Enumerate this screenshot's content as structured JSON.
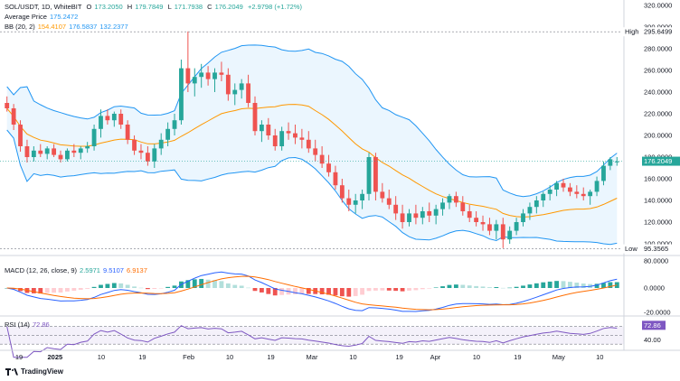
{
  "header": {
    "symbol_line": "SOL/USDT, 1D, WhiteBIT",
    "open_label": "O",
    "open": "173.2050",
    "high_label": "H",
    "high": "179.7849",
    "low_label": "L",
    "low": "171.7938",
    "close_label": "C",
    "close": "176.2049",
    "change": "+2.9798 (+1.72%)",
    "avg_label": "Average Price",
    "avg_value": "175.2472",
    "bb_label": "BB (20, 2)",
    "bb_mid": "154.4107",
    "bb_upper": "176.5837",
    "bb_lower": "132.2377"
  },
  "price_axis": {
    "ticks": [
      "320.0000",
      "300.0000",
      "280.0000",
      "260.0000",
      "240.0000",
      "220.0000",
      "200.0000",
      "180.0000",
      "160.0000",
      "140.0000",
      "120.0000",
      "100.0000"
    ],
    "high_tag_label": "High",
    "high_tag_value": "295.6499",
    "low_tag_label": "Low",
    "low_tag_value": "95.3565",
    "last_price_tag": "176.2049"
  },
  "macd": {
    "label": "MACD (12, 26, close, 9)",
    "hist": "2.5971",
    "macd": "9.5107",
    "signal": "6.9137",
    "ticks": [
      "80.0000",
      "0.0000",
      "-20.0000"
    ]
  },
  "rsi": {
    "label": "RSI (14)",
    "value": "72.86",
    "ticks": [
      "40.00"
    ]
  },
  "time_axis": [
    "19",
    "2025",
    "10",
    "19",
    "Feb",
    "10",
    "19",
    "Mar",
    "10",
    "19",
    "Apr",
    "10",
    "19",
    "May",
    "10"
  ],
  "branding": "TradingView",
  "colors": {
    "up": "#26a69a",
    "down": "#ef5350",
    "bb_line": "#2196f3",
    "bb_fill": "#e3f2fd",
    "bb_mid": "#ff9800",
    "macd_line": "#2962ff",
    "signal_line": "#ff6d00",
    "rsi_line": "#7e57c2"
  },
  "chart_data": {
    "type": "candlestick",
    "series_ohlc": [
      [
        230,
        236,
        222,
        225
      ],
      [
        225,
        229,
        205,
        210
      ],
      [
        210,
        214,
        185,
        190
      ],
      [
        190,
        196,
        175,
        180
      ],
      [
        180,
        190,
        176,
        186
      ],
      [
        186,
        192,
        180,
        183
      ],
      [
        183,
        190,
        178,
        188
      ],
      [
        188,
        192,
        180,
        182
      ],
      [
        182,
        186,
        175,
        178
      ],
      [
        178,
        188,
        176,
        186
      ],
      [
        186,
        192,
        180,
        184
      ],
      [
        184,
        190,
        178,
        188
      ],
      [
        188,
        194,
        184,
        190
      ],
      [
        190,
        210,
        186,
        206
      ],
      [
        206,
        224,
        198,
        218
      ],
      [
        218,
        224,
        210,
        214
      ],
      [
        214,
        222,
        208,
        220
      ],
      [
        220,
        224,
        206,
        210
      ],
      [
        210,
        214,
        192,
        196
      ],
      [
        196,
        200,
        182,
        186
      ],
      [
        186,
        192,
        178,
        184
      ],
      [
        184,
        190,
        172,
        176
      ],
      [
        176,
        192,
        170,
        188
      ],
      [
        188,
        202,
        182,
        196
      ],
      [
        196,
        212,
        190,
        206
      ],
      [
        206,
        220,
        200,
        214
      ],
      [
        214,
        270,
        210,
        262
      ],
      [
        262,
        296,
        240,
        248
      ],
      [
        248,
        262,
        236,
        254
      ],
      [
        254,
        266,
        244,
        258
      ],
      [
        258,
        264,
        246,
        252
      ],
      [
        252,
        262,
        240,
        258
      ],
      [
        258,
        268,
        250,
        256
      ],
      [
        256,
        262,
        232,
        238
      ],
      [
        238,
        248,
        228,
        242
      ],
      [
        242,
        252,
        234,
        248
      ],
      [
        248,
        256,
        226,
        230
      ],
      [
        230,
        236,
        200,
        204
      ],
      [
        204,
        214,
        194,
        210
      ],
      [
        210,
        216,
        196,
        200
      ],
      [
        200,
        206,
        186,
        190
      ],
      [
        190,
        208,
        186,
        204
      ],
      [
        204,
        212,
        196,
        202
      ],
      [
        202,
        210,
        192,
        198
      ],
      [
        198,
        206,
        188,
        196
      ],
      [
        196,
        204,
        184,
        188
      ],
      [
        188,
        196,
        176,
        182
      ],
      [
        182,
        190,
        170,
        174
      ],
      [
        174,
        182,
        162,
        166
      ],
      [
        166,
        172,
        150,
        154
      ],
      [
        154,
        160,
        138,
        142
      ],
      [
        142,
        150,
        130,
        136
      ],
      [
        136,
        146,
        128,
        140
      ],
      [
        140,
        150,
        132,
        146
      ],
      [
        146,
        184,
        140,
        180
      ],
      [
        180,
        184,
        140,
        148
      ],
      [
        148,
        156,
        138,
        142
      ],
      [
        142,
        150,
        132,
        136
      ],
      [
        136,
        144,
        122,
        128
      ],
      [
        128,
        136,
        114,
        120
      ],
      [
        120,
        132,
        116,
        128
      ],
      [
        128,
        136,
        118,
        124
      ],
      [
        124,
        134,
        118,
        130
      ],
      [
        130,
        138,
        120,
        126
      ],
      [
        126,
        136,
        118,
        132
      ],
      [
        132,
        142,
        126,
        138
      ],
      [
        138,
        146,
        132,
        144
      ],
      [
        144,
        148,
        134,
        138
      ],
      [
        138,
        144,
        126,
        130
      ],
      [
        130,
        136,
        120,
        124
      ],
      [
        124,
        130,
        116,
        120
      ],
      [
        120,
        126,
        112,
        118
      ],
      [
        118,
        124,
        108,
        112
      ],
      [
        112,
        122,
        104,
        118
      ],
      [
        118,
        124,
        96,
        104
      ],
      [
        104,
        116,
        100,
        112
      ],
      [
        112,
        124,
        108,
        120
      ],
      [
        120,
        132,
        116,
        128
      ],
      [
        128,
        138,
        122,
        134
      ],
      [
        134,
        144,
        128,
        140
      ],
      [
        140,
        148,
        134,
        146
      ],
      [
        146,
        154,
        140,
        150
      ],
      [
        150,
        158,
        144,
        156
      ],
      [
        156,
        160,
        148,
        152
      ],
      [
        152,
        156,
        144,
        148
      ],
      [
        148,
        154,
        142,
        146
      ],
      [
        146,
        152,
        140,
        144
      ],
      [
        144,
        150,
        136,
        148
      ],
      [
        148,
        162,
        144,
        158
      ],
      [
        158,
        176,
        154,
        172
      ],
      [
        172,
        180,
        168,
        178
      ],
      [
        176,
        180,
        172,
        176
      ]
    ],
    "y_range": [
      90,
      325
    ],
    "bb_period": 20,
    "bb_stddev": 2,
    "macd_params": [
      12,
      26,
      9
    ],
    "rsi_period": 14,
    "rsi_levels": [
      70,
      50,
      30
    ]
  }
}
